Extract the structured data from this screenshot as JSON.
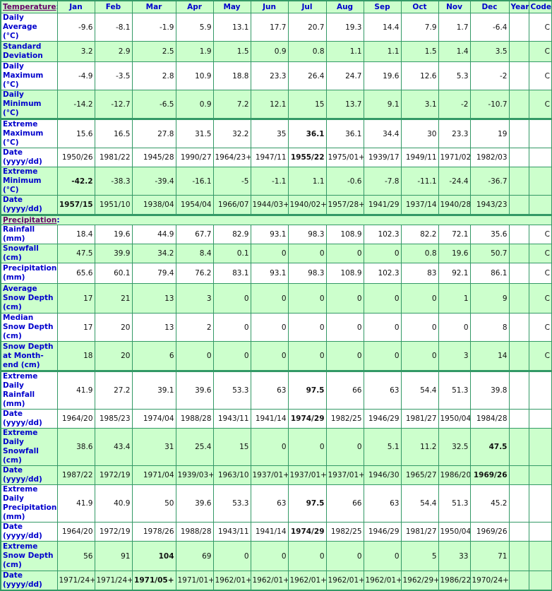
{
  "header": {
    "section": "Temperature",
    "columns": [
      "Jan",
      "Feb",
      "Mar",
      "Apr",
      "May",
      "Jun",
      "Jul",
      "Aug",
      "Sep",
      "Oct",
      "Nov",
      "Dec",
      "Year",
      "Code"
    ]
  },
  "colors": {
    "row_alt": "#ccffcc",
    "border": "#339966",
    "label": "#0000cc",
    "section": "#660066"
  },
  "temperature_rows": [
    {
      "label": "Daily Average (°C)",
      "values": [
        "-9.6",
        "-8.1",
        "-1.9",
        "5.9",
        "13.1",
        "17.7",
        "20.7",
        "19.3",
        "14.4",
        "7.9",
        "1.7",
        "-6.4",
        "",
        "C"
      ],
      "bold": [],
      "bg": "w"
    },
    {
      "label": "Standard Deviation",
      "values": [
        "3.2",
        "2.9",
        "2.5",
        "1.9",
        "1.5",
        "0.9",
        "0.8",
        "1.1",
        "1.1",
        "1.5",
        "1.4",
        "3.5",
        "",
        "C"
      ],
      "bold": [],
      "bg": "g"
    },
    {
      "label": "Daily Maximum (°C)",
      "values": [
        "-4.9",
        "-3.5",
        "2.8",
        "10.9",
        "18.8",
        "23.3",
        "26.4",
        "24.7",
        "19.6",
        "12.6",
        "5.3",
        "-2",
        "",
        "C"
      ],
      "bold": [],
      "bg": "w"
    },
    {
      "label": "Daily Minimum (°C)",
      "values": [
        "-14.2",
        "-12.7",
        "-6.5",
        "0.9",
        "7.2",
        "12.1",
        "15",
        "13.7",
        "9.1",
        "3.1",
        "-2",
        "-10.7",
        "",
        "C"
      ],
      "bold": [],
      "bg": "g"
    },
    {
      "label": "Extreme Maximum (°C)",
      "values": [
        "15.6",
        "16.5",
        "27.8",
        "31.5",
        "32.2",
        "35",
        "36.1",
        "36.1",
        "34.4",
        "30",
        "23.3",
        "19",
        "",
        ""
      ],
      "bold": [
        6
      ],
      "bg": "w",
      "sep": true
    },
    {
      "label": "Date (yyyy/dd)",
      "values": [
        "1950/26",
        "1981/22",
        "1945/28",
        "1990/27",
        "1964/23+",
        "1947/11",
        "1955/22",
        "1975/01+",
        "1939/17",
        "1949/11",
        "1971/02",
        "1982/03",
        "",
        ""
      ],
      "bold": [
        6
      ],
      "bg": "w"
    },
    {
      "label": "Extreme Minimum (°C)",
      "values": [
        "-42.2",
        "-38.3",
        "-39.4",
        "-16.1",
        "-5",
        "-1.1",
        "1.1",
        "-0.6",
        "-7.8",
        "-11.1",
        "-24.4",
        "-36.7",
        "",
        ""
      ],
      "bold": [
        0
      ],
      "bg": "g"
    },
    {
      "label": "Date (yyyy/dd)",
      "values": [
        "1957/15",
        "1951/10",
        "1938/04",
        "1954/04",
        "1966/07",
        "1944/03+",
        "1940/02+",
        "1957/28+",
        "1941/29",
        "1937/14",
        "1940/28",
        "1943/23",
        "",
        ""
      ],
      "bold": [
        0
      ],
      "bg": "g"
    }
  ],
  "precipitation": {
    "section": "Precipitation"
  },
  "precipitation_rows": [
    {
      "label": "Rainfall (mm)",
      "values": [
        "18.4",
        "19.6",
        "44.9",
        "67.7",
        "82.9",
        "93.1",
        "98.3",
        "108.9",
        "102.3",
        "82.2",
        "72.1",
        "35.6",
        "",
        "C"
      ],
      "bold": [],
      "bg": "w"
    },
    {
      "label": "Snowfall (cm)",
      "values": [
        "47.5",
        "39.9",
        "34.2",
        "8.4",
        "0.1",
        "0",
        "0",
        "0",
        "0",
        "0.8",
        "19.6",
        "50.7",
        "",
        "C"
      ],
      "bold": [],
      "bg": "g"
    },
    {
      "label": "Precipitation (mm)",
      "values": [
        "65.6",
        "60.1",
        "79.4",
        "76.2",
        "83.1",
        "93.1",
        "98.3",
        "108.9",
        "102.3",
        "83",
        "92.1",
        "86.1",
        "",
        "C"
      ],
      "bold": [],
      "bg": "w"
    },
    {
      "label": "Average Snow Depth (cm)",
      "values": [
        "17",
        "21",
        "13",
        "3",
        "0",
        "0",
        "0",
        "0",
        "0",
        "0",
        "1",
        "9",
        "",
        "C"
      ],
      "bold": [],
      "bg": "g"
    },
    {
      "label": "Median Snow Depth (cm)",
      "values": [
        "17",
        "20",
        "13",
        "2",
        "0",
        "0",
        "0",
        "0",
        "0",
        "0",
        "0",
        "8",
        "",
        "C"
      ],
      "bold": [],
      "bg": "w"
    },
    {
      "label": "Snow Depth at Month-end (cm)",
      "values": [
        "18",
        "20",
        "6",
        "0",
        "0",
        "0",
        "0",
        "0",
        "0",
        "0",
        "3",
        "14",
        "",
        "C"
      ],
      "bold": [],
      "bg": "g"
    },
    {
      "label": "Extreme Daily Rainfall (mm)",
      "values": [
        "41.9",
        "27.2",
        "39.1",
        "39.6",
        "53.3",
        "63",
        "97.5",
        "66",
        "63",
        "54.4",
        "51.3",
        "39.8",
        "",
        ""
      ],
      "bold": [
        6
      ],
      "bg": "w",
      "sep": true
    },
    {
      "label": "Date (yyyy/dd)",
      "values": [
        "1964/20",
        "1985/23",
        "1974/04",
        "1988/28",
        "1943/11",
        "1941/14",
        "1974/29",
        "1982/25",
        "1946/29",
        "1981/27",
        "1950/04",
        "1984/28",
        "",
        ""
      ],
      "bold": [
        6
      ],
      "bg": "w"
    },
    {
      "label": "Extreme Daily Snowfall (cm)",
      "values": [
        "38.6",
        "43.4",
        "31",
        "25.4",
        "15",
        "0",
        "0",
        "0",
        "5.1",
        "11.2",
        "32.5",
        "47.5",
        "",
        ""
      ],
      "bold": [
        11
      ],
      "bg": "g"
    },
    {
      "label": "Date (yyyy/dd)",
      "values": [
        "1987/22",
        "1972/19",
        "1971/04",
        "1939/03+",
        "1963/10",
        "1937/01+",
        "1937/01+",
        "1937/01+",
        "1946/30",
        "1965/27",
        "1986/20",
        "1969/26",
        "",
        ""
      ],
      "bold": [
        11
      ],
      "bg": "g"
    },
    {
      "label": "Extreme Daily Precipitation (mm)",
      "values": [
        "41.9",
        "40.9",
        "50",
        "39.6",
        "53.3",
        "63",
        "97.5",
        "66",
        "63",
        "54.4",
        "51.3",
        "45.2",
        "",
        ""
      ],
      "bold": [
        6
      ],
      "bg": "w"
    },
    {
      "label": "Date (yyyy/dd)",
      "values": [
        "1964/20",
        "1972/19",
        "1978/26",
        "1988/28",
        "1943/11",
        "1941/14",
        "1974/29",
        "1982/25",
        "1946/29",
        "1981/27",
        "1950/04",
        "1969/26",
        "",
        ""
      ],
      "bold": [
        6
      ],
      "bg": "w"
    },
    {
      "label": "Extreme Snow Depth (cm)",
      "values": [
        "56",
        "91",
        "104",
        "69",
        "0",
        "0",
        "0",
        "0",
        "0",
        "5",
        "33",
        "71",
        "",
        ""
      ],
      "bold": [
        2
      ],
      "bg": "g"
    },
    {
      "label": "Date (yyyy/dd)",
      "values": [
        "1971/24+",
        "1971/24+",
        "1971/05+",
        "1971/01+",
        "1962/01+",
        "1962/01+",
        "1962/01+",
        "1962/01+",
        "1962/01+",
        "1962/29+",
        "1986/22",
        "1970/24+",
        "",
        ""
      ],
      "bold": [
        2
      ],
      "bg": "g"
    }
  ]
}
